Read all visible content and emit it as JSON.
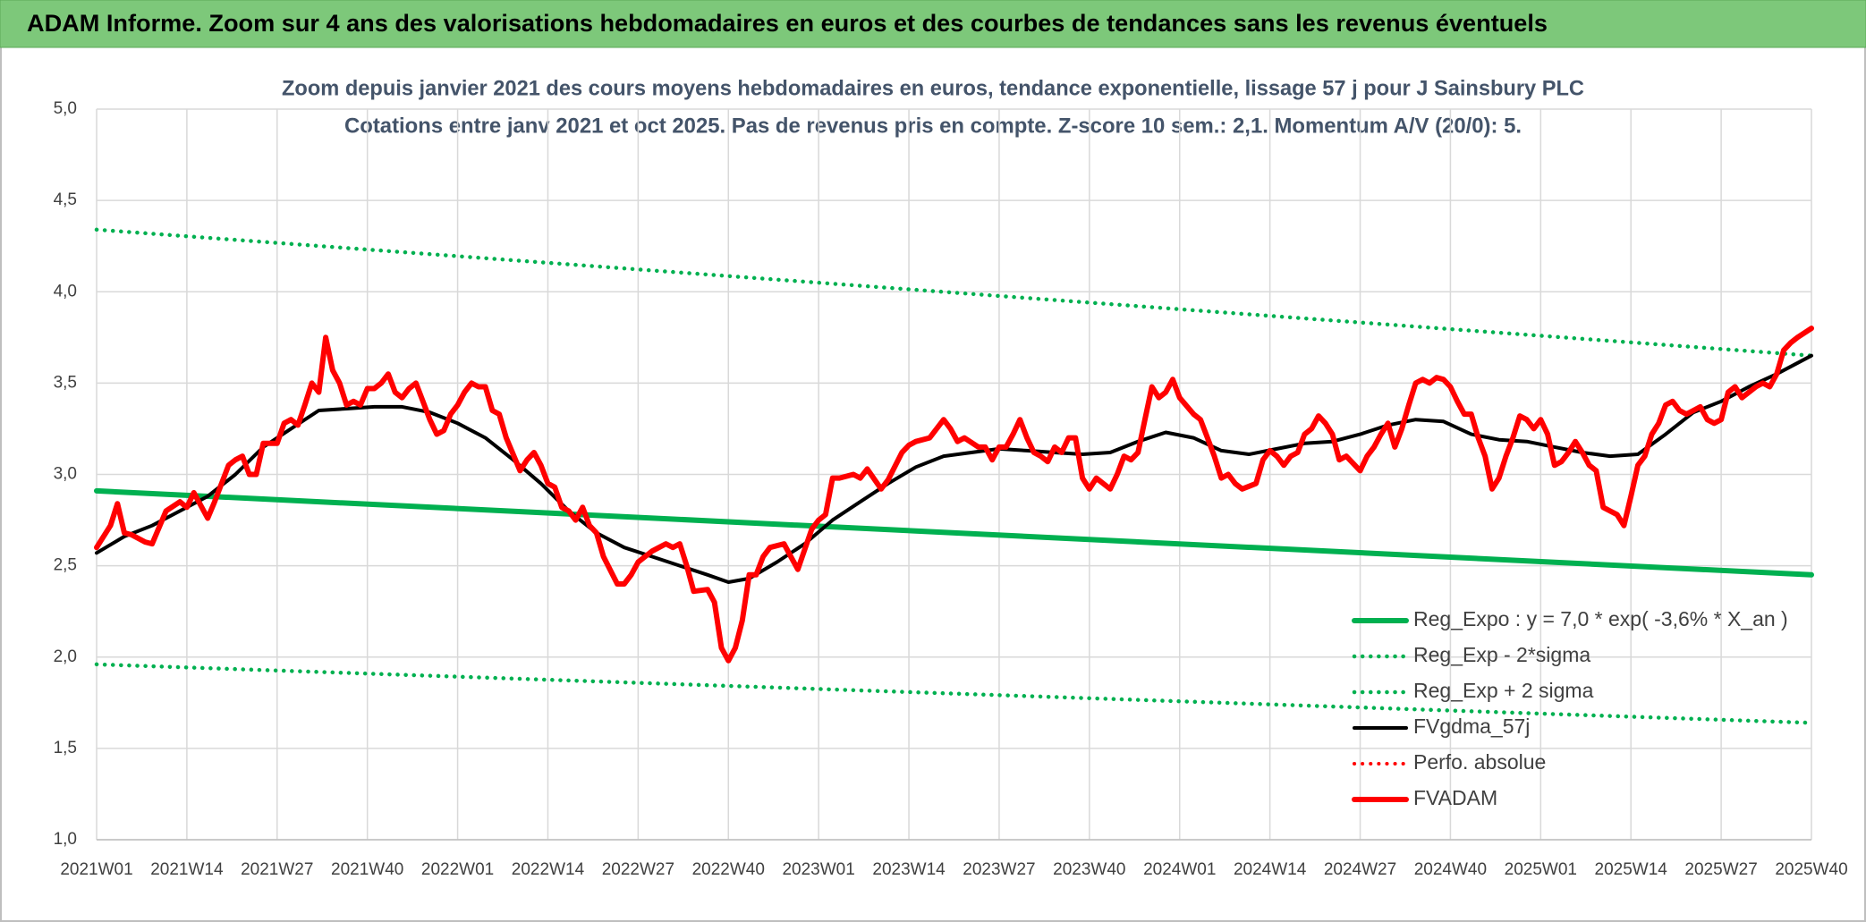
{
  "chart_data": {
    "type": "line",
    "title": "ADAM Informe. Zoom sur 4 ans des valorisations hebdomadaires en euros et des courbes de tendances sans les revenus éventuels",
    "subtitle": [
      "Zoom depuis janvier 2021 des cours moyens hebdomadaires en euros, tendance exponentielle, lissage 57 j pour J Sainsbury PLC",
      "Cotations entre janv 2021 et oct 2025. Pas de revenus pris en compte. Z-score 10 sem.: 2,1. Momentum A/V (20/0): 5."
    ],
    "xlim": [
      0,
      247
    ],
    "xticks": [
      {
        "value": 0,
        "label": "2021W01"
      },
      {
        "value": 13,
        "label": "2021W14"
      },
      {
        "value": 26,
        "label": "2021W27"
      },
      {
        "value": 39,
        "label": "2021W40"
      },
      {
        "value": 52,
        "label": "2022W01"
      },
      {
        "value": 65,
        "label": "2022W14"
      },
      {
        "value": 78,
        "label": "2022W27"
      },
      {
        "value": 91,
        "label": "2022W40"
      },
      {
        "value": 104,
        "label": "2023W01"
      },
      {
        "value": 117,
        "label": "2023W14"
      },
      {
        "value": 130,
        "label": "2023W27"
      },
      {
        "value": 143,
        "label": "2023W40"
      },
      {
        "value": 156,
        "label": "2024W01"
      },
      {
        "value": 169,
        "label": "2024W14"
      },
      {
        "value": 182,
        "label": "2024W27"
      },
      {
        "value": 195,
        "label": "2024W40"
      },
      {
        "value": 208,
        "label": "2025W01"
      },
      {
        "value": 221,
        "label": "2025W14"
      },
      {
        "value": 234,
        "label": "2025W27"
      },
      {
        "value": 247,
        "label": "2025W40"
      }
    ],
    "ylim": [
      1,
      5
    ],
    "yticks": [
      {
        "value": 1,
        "label": "1,0"
      },
      {
        "value": 1.5,
        "label": "1,5"
      },
      {
        "value": 2,
        "label": "2,0"
      },
      {
        "value": 2.5,
        "label": "2,5"
      },
      {
        "value": 3,
        "label": "3,0"
      },
      {
        "value": 3.5,
        "label": "3,5"
      },
      {
        "value": 4,
        "label": "4,0"
      },
      {
        "value": 4.5,
        "label": "4,5"
      },
      {
        "value": 5,
        "label": "5,0"
      }
    ],
    "grid": true,
    "legend": "lower-right",
    "series": [
      {
        "name": "Reg_Expo : y = 7,0 * exp( -3,6% *  X_an )",
        "color": "#00b050",
        "style": "solid",
        "x": [
          0,
          247
        ],
        "values": [
          2.91,
          2.45
        ]
      },
      {
        "name": "Reg_Exp - 2*sigma",
        "color": "#00b050",
        "style": "dotted",
        "x": [
          0,
          247
        ],
        "values": [
          1.96,
          1.64
        ]
      },
      {
        "name": "Reg_Exp + 2 sigma",
        "color": "#00b050",
        "style": "dotted",
        "x": [
          0,
          247
        ],
        "values": [
          4.34,
          3.65
        ]
      },
      {
        "name": "FVgdma_57j",
        "color": "#000000",
        "style": "solid",
        "x": [
          0,
          4,
          8,
          12,
          16,
          20,
          24,
          28,
          32,
          36,
          40,
          44,
          48,
          52,
          56,
          60,
          64,
          68,
          72,
          76,
          80,
          84,
          88,
          91,
          94,
          98,
          102,
          106,
          110,
          114,
          118,
          122,
          126,
          130,
          134,
          138,
          142,
          146,
          150,
          154,
          158,
          162,
          166,
          170,
          174,
          178,
          182,
          186,
          190,
          194,
          198,
          202,
          206,
          210,
          214,
          218,
          222,
          226,
          230,
          234,
          238,
          242,
          247
        ],
        "values": [
          2.57,
          2.66,
          2.72,
          2.8,
          2.88,
          3.0,
          3.15,
          3.25,
          3.35,
          3.36,
          3.37,
          3.37,
          3.34,
          3.28,
          3.2,
          3.08,
          2.95,
          2.8,
          2.68,
          2.6,
          2.55,
          2.5,
          2.45,
          2.41,
          2.43,
          2.52,
          2.62,
          2.75,
          2.85,
          2.95,
          3.04,
          3.1,
          3.12,
          3.14,
          3.13,
          3.12,
          3.11,
          3.12,
          3.18,
          3.23,
          3.2,
          3.13,
          3.11,
          3.14,
          3.17,
          3.18,
          3.22,
          3.27,
          3.3,
          3.29,
          3.22,
          3.19,
          3.18,
          3.15,
          3.12,
          3.1,
          3.11,
          3.22,
          3.34,
          3.4,
          3.48,
          3.55,
          3.65
        ]
      },
      {
        "name": "Perfo. absolue",
        "color": "#ff0000",
        "style": "dotted",
        "x": [],
        "values": []
      },
      {
        "name": "FVADAM",
        "color": "#ff0000",
        "style": "solid",
        "x": [
          0,
          2,
          3,
          4,
          5,
          7,
          8,
          10,
          12,
          13,
          14,
          16,
          17,
          19,
          20,
          21,
          22,
          23,
          24,
          26,
          27,
          28,
          29,
          30,
          31,
          32,
          33,
          34,
          35,
          36,
          37,
          38,
          39,
          40,
          41,
          42,
          43,
          44,
          45,
          46,
          47,
          48,
          49,
          50,
          51,
          52,
          53,
          54,
          55,
          56,
          57,
          58,
          59,
          61,
          62,
          63,
          64,
          65,
          66,
          67,
          68,
          69,
          70,
          71,
          72,
          73,
          75,
          76,
          77,
          78,
          80,
          81,
          82,
          83,
          84,
          85,
          86,
          88,
          89,
          90,
          91,
          92,
          93,
          94,
          95,
          96,
          97,
          99,
          100,
          101,
          103,
          104,
          105,
          106,
          107,
          109,
          110,
          111,
          113,
          114,
          116,
          117,
          118,
          120,
          122,
          123,
          124,
          125,
          127,
          128,
          129,
          130,
          131,
          132,
          133,
          134,
          135,
          136,
          137,
          138,
          139,
          140,
          141,
          142,
          143,
          144,
          146,
          147,
          148,
          149,
          150,
          151,
          152,
          153,
          154,
          155,
          156,
          158,
          159,
          160,
          161,
          162,
          163,
          164,
          165,
          167,
          168,
          169,
          170,
          171,
          172,
          173,
          174,
          175,
          176,
          177,
          178,
          179,
          180,
          182,
          183,
          184,
          185,
          186,
          187,
          188,
          189,
          190,
          191,
          192,
          193,
          194,
          195,
          196,
          197,
          198,
          199,
          200,
          201,
          202,
          203,
          204,
          205,
          206,
          207,
          208,
          209,
          210,
          211,
          212,
          213,
          214,
          215,
          216,
          217,
          218,
          219,
          220,
          221,
          222,
          223,
          224,
          225,
          226,
          227,
          228,
          229,
          230,
          231,
          232,
          233,
          234,
          235,
          236,
          237,
          238,
          239,
          240,
          241,
          242,
          243,
          244,
          245,
          247
        ],
        "values": [
          2.6,
          2.72,
          2.84,
          2.68,
          2.67,
          2.63,
          2.62,
          2.8,
          2.85,
          2.82,
          2.9,
          2.76,
          2.85,
          3.05,
          3.08,
          3.1,
          3.0,
          3.0,
          3.17,
          3.17,
          3.28,
          3.3,
          3.27,
          3.38,
          3.5,
          3.45,
          3.75,
          3.57,
          3.5,
          3.38,
          3.4,
          3.38,
          3.47,
          3.47,
          3.5,
          3.55,
          3.45,
          3.42,
          3.47,
          3.5,
          3.4,
          3.3,
          3.22,
          3.24,
          3.33,
          3.38,
          3.45,
          3.5,
          3.48,
          3.48,
          3.35,
          3.33,
          3.2,
          3.02,
          3.08,
          3.12,
          3.05,
          2.95,
          2.93,
          2.82,
          2.8,
          2.75,
          2.82,
          2.72,
          2.68,
          2.55,
          2.4,
          2.4,
          2.45,
          2.52,
          2.58,
          2.6,
          2.62,
          2.6,
          2.62,
          2.5,
          2.36,
          2.37,
          2.3,
          2.05,
          1.98,
          2.05,
          2.2,
          2.45,
          2.45,
          2.55,
          2.6,
          2.62,
          2.55,
          2.48,
          2.7,
          2.75,
          2.78,
          2.98,
          2.98,
          3.0,
          2.98,
          3.03,
          2.92,
          2.97,
          3.12,
          3.16,
          3.18,
          3.2,
          3.3,
          3.25,
          3.18,
          3.2,
          3.15,
          3.15,
          3.08,
          3.15,
          3.15,
          3.22,
          3.3,
          3.2,
          3.12,
          3.1,
          3.07,
          3.15,
          3.12,
          3.2,
          3.2,
          2.98,
          2.92,
          2.98,
          2.92,
          3.0,
          3.1,
          3.08,
          3.12,
          3.3,
          3.48,
          3.42,
          3.45,
          3.52,
          3.42,
          3.33,
          3.3,
          3.2,
          3.1,
          2.98,
          3.0,
          2.95,
          2.92,
          2.95,
          3.08,
          3.13,
          3.1,
          3.05,
          3.1,
          3.12,
          3.22,
          3.25,
          3.32,
          3.28,
          3.22,
          3.08,
          3.1,
          3.02,
          3.1,
          3.15,
          3.22,
          3.28,
          3.15,
          3.25,
          3.38,
          3.5,
          3.52,
          3.5,
          3.53,
          3.52,
          3.48,
          3.4,
          3.33,
          3.33,
          3.2,
          3.1,
          2.92,
          2.98,
          3.1,
          3.2,
          3.32,
          3.3,
          3.25,
          3.3,
          3.22,
          3.05,
          3.07,
          3.12,
          3.18,
          3.12,
          3.05,
          3.02,
          2.82,
          2.8,
          2.78,
          2.72,
          2.88,
          3.05,
          3.1,
          3.22,
          3.28,
          3.38,
          3.4,
          3.35,
          3.33,
          3.35,
          3.37,
          3.3,
          3.28,
          3.3,
          3.45,
          3.48,
          3.42,
          3.45,
          3.48,
          3.5,
          3.48,
          3.55,
          3.68,
          3.72,
          3.75,
          3.8
        ]
      }
    ]
  }
}
